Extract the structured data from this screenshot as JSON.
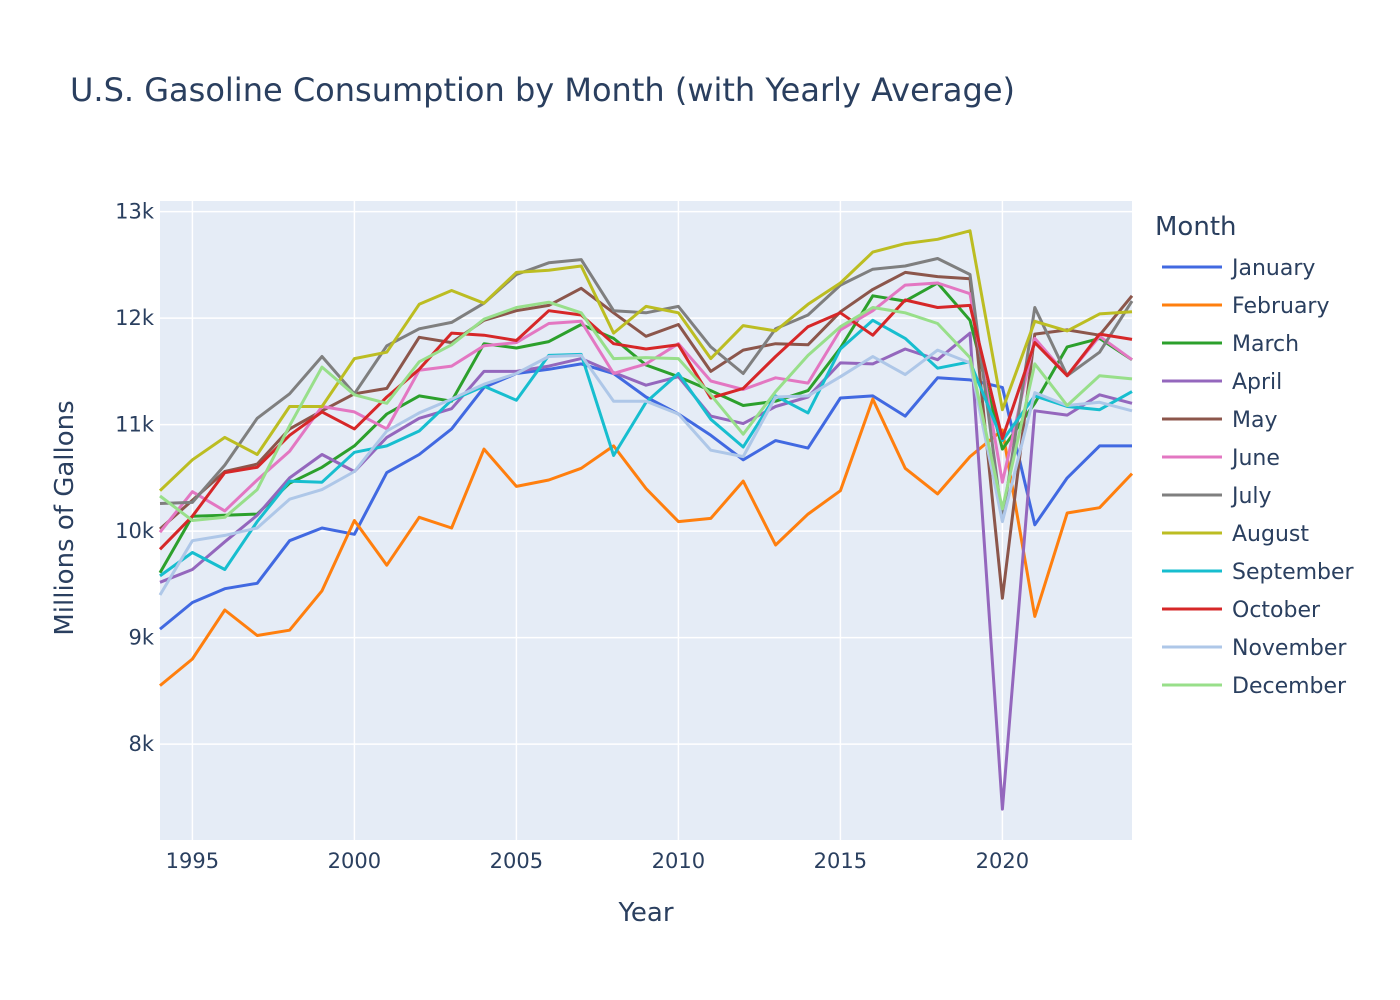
{
  "chart_data": {
    "type": "line",
    "title": "U.S. Gasoline Consumption by Month (with Yearly Average)",
    "xlabel": "Year",
    "ylabel": "Millions of Gallons",
    "xlim": [
      1994,
      2024
    ],
    "ylim": [
      7100,
      13100
    ],
    "x_ticks": [
      1995,
      2000,
      2005,
      2010,
      2015,
      2020
    ],
    "x_tick_labels": [
      "1995",
      "2000",
      "2005",
      "2010",
      "2015",
      "2020"
    ],
    "y_ticks": [
      8000,
      9000,
      10000,
      11000,
      12000,
      13000
    ],
    "y_tick_labels": [
      "8k",
      "9k",
      "10k",
      "11k",
      "12k",
      "13k"
    ],
    "legend_title": "Month",
    "legend_position": "right",
    "grid": true,
    "plot_bg": "#e5ecf6",
    "grid_color": "#ffffff",
    "x": [
      1994,
      1995,
      1996,
      1997,
      1998,
      1999,
      2000,
      2001,
      2002,
      2003,
      2004,
      2005,
      2006,
      2007,
      2008,
      2009,
      2010,
      2011,
      2012,
      2013,
      2014,
      2015,
      2016,
      2017,
      2018,
      2019,
      2020,
      2021,
      2022,
      2023,
      2024
    ],
    "series": [
      {
        "name": "January",
        "color": "#4169e1",
        "values": [
          9080,
          9330,
          9460,
          9510,
          9910,
          10030,
          9970,
          10550,
          10720,
          10960,
          11350,
          11480,
          11520,
          11570,
          11480,
          11260,
          11100,
          10900,
          10670,
          10850,
          10780,
          11250,
          11270,
          11080,
          11440,
          11420,
          11350,
          10060,
          10500,
          10800,
          10800
        ]
      },
      {
        "name": "February",
        "color": "#ff7f0e",
        "values": [
          8550,
          8800,
          9260,
          9020,
          9070,
          9440,
          10100,
          9680,
          10130,
          10030,
          10770,
          10420,
          10480,
          10590,
          10800,
          10400,
          10090,
          10120,
          10470,
          9870,
          10160,
          10380,
          11240,
          10590,
          10350,
          10700,
          10950,
          9200,
          10170,
          10220,
          10540
        ]
      },
      {
        "name": "March",
        "color": "#2ca02c",
        "values": [
          9610,
          10140,
          10150,
          10160,
          10450,
          10600,
          10800,
          11100,
          11270,
          11220,
          11760,
          11720,
          11780,
          11940,
          11810,
          11560,
          11450,
          11320,
          11180,
          11220,
          11320,
          11720,
          12210,
          12160,
          12330,
          11980,
          10770,
          11200,
          11730,
          11810,
          11610
        ]
      },
      {
        "name": "April",
        "color": "#9467bd",
        "values": [
          9520,
          9640,
          9900,
          10150,
          10500,
          10720,
          10560,
          10880,
          11060,
          11150,
          11500,
          11500,
          11550,
          11620,
          11490,
          11370,
          11450,
          11080,
          11010,
          11170,
          11260,
          11580,
          11570,
          11710,
          11610,
          11860,
          7390,
          11130,
          11090,
          11280,
          11200
        ]
      },
      {
        "name": "May",
        "color": "#8c564b",
        "values": [
          10020,
          10290,
          10560,
          10630,
          10960,
          11130,
          11290,
          11340,
          11820,
          11770,
          11980,
          12070,
          12120,
          12280,
          12050,
          11830,
          11940,
          11500,
          11700,
          11760,
          11750,
          12060,
          12270,
          12430,
          12390,
          12370,
          9370,
          11850,
          11890,
          11840,
          12210
        ]
      },
      {
        "name": "June",
        "color": "#e377c2",
        "values": [
          9990,
          10370,
          10190,
          10480,
          10750,
          11170,
          11120,
          10960,
          11510,
          11550,
          11740,
          11770,
          11950,
          11970,
          11480,
          11570,
          11760,
          11410,
          11330,
          11440,
          11390,
          11890,
          12070,
          12310,
          12330,
          12230,
          10460,
          11810,
          11460,
          11830,
          11610
        ]
      },
      {
        "name": "July",
        "color": "#7f7f7f",
        "values": [
          10260,
          10270,
          10620,
          11060,
          11290,
          11640,
          11290,
          11740,
          11900,
          11960,
          12140,
          12410,
          12520,
          12550,
          12070,
          12050,
          12110,
          11730,
          11480,
          11900,
          12030,
          12310,
          12460,
          12490,
          12560,
          12410,
          10100,
          12100,
          11460,
          11680,
          12160
        ]
      },
      {
        "name": "August",
        "color": "#bcbd22",
        "values": [
          10380,
          10670,
          10880,
          10720,
          11170,
          11170,
          11620,
          11680,
          12130,
          12260,
          12140,
          12430,
          12450,
          12490,
          11860,
          12110,
          12050,
          11620,
          11930,
          11880,
          12130,
          12330,
          12620,
          12700,
          12740,
          12820,
          11140,
          11970,
          11880,
          12040,
          12060
        ]
      },
      {
        "name": "September",
        "color": "#17becf",
        "values": [
          9580,
          9800,
          9640,
          10090,
          10470,
          10460,
          10740,
          10800,
          10940,
          11230,
          11360,
          11230,
          11650,
          11660,
          10710,
          11210,
          11480,
          11050,
          10790,
          11270,
          11110,
          11710,
          11980,
          11810,
          11530,
          11590,
          10850,
          11270,
          11170,
          11140,
          11310
        ]
      },
      {
        "name": "October",
        "color": "#d62728",
        "values": [
          9830,
          10140,
          10550,
          10600,
          10900,
          11120,
          10960,
          11260,
          11520,
          11860,
          11840,
          11790,
          12070,
          12030,
          11760,
          11710,
          11750,
          11250,
          11340,
          11640,
          11920,
          12050,
          11840,
          12170,
          12100,
          12120,
          10870,
          11770,
          11460,
          11850,
          11800
        ]
      },
      {
        "name": "November",
        "color": "#aec7e8",
        "values": [
          9400,
          9910,
          9960,
          10030,
          10300,
          10390,
          10560,
          10940,
          11110,
          11240,
          11380,
          11480,
          11640,
          11650,
          11220,
          11220,
          11100,
          10760,
          10700,
          11260,
          11270,
          11450,
          11640,
          11470,
          11700,
          11580,
          10090,
          11300,
          11180,
          11210,
          11130
        ]
      },
      {
        "name": "December",
        "color": "#98df8a",
        "values": [
          10330,
          10100,
          10130,
          10390,
          10990,
          11540,
          11280,
          11200,
          11590,
          11750,
          11990,
          12100,
          12150,
          12050,
          11620,
          11630,
          11620,
          11280,
          10910,
          11310,
          11650,
          11920,
          12100,
          12050,
          11950,
          11630,
          10210,
          11570,
          11180,
          11460,
          11430
        ]
      }
    ]
  }
}
